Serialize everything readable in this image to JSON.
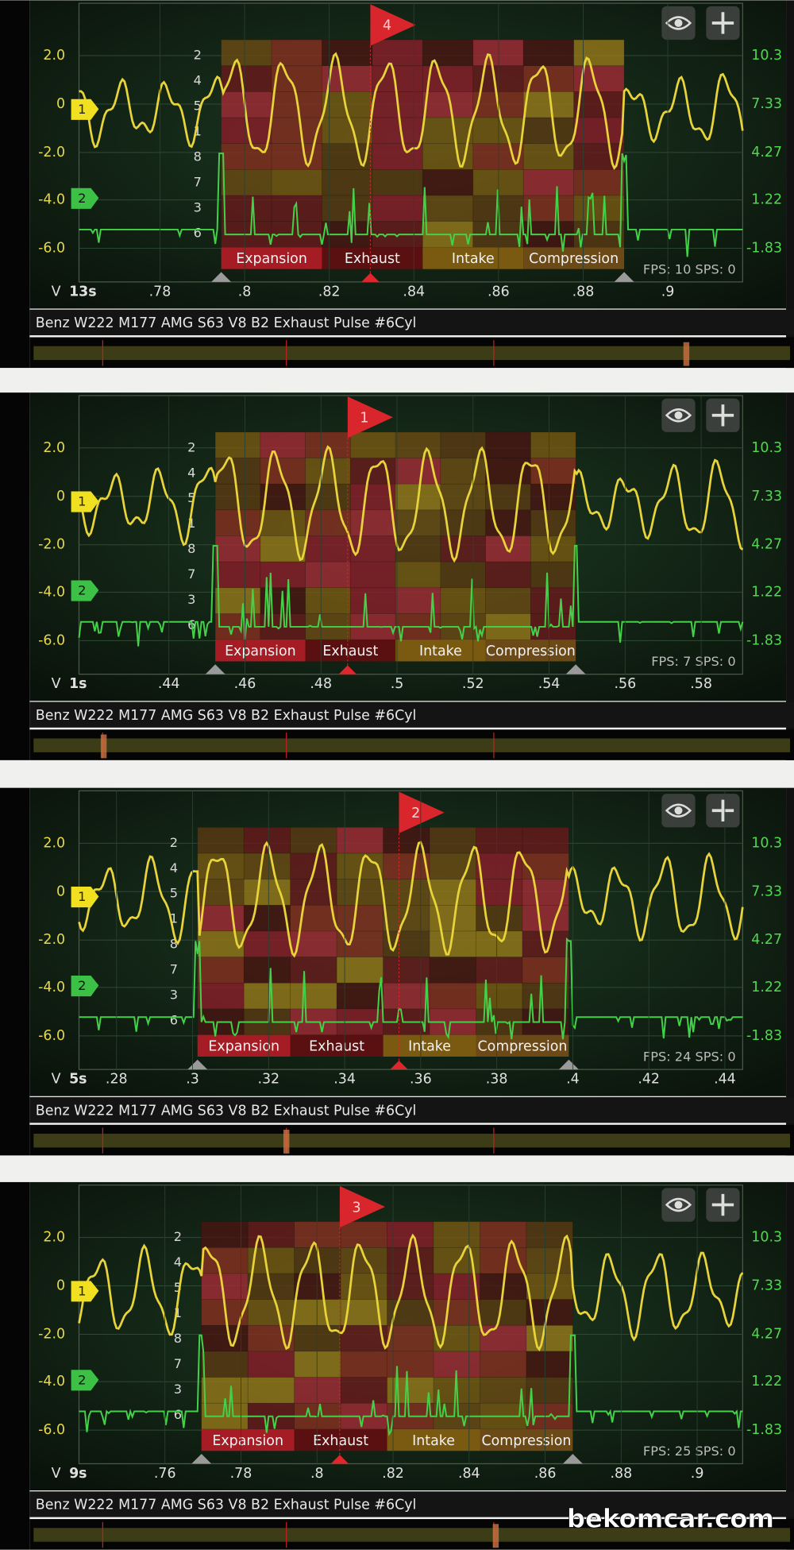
{
  "panels": [
    {
      "marker": "4",
      "time": "13s",
      "xticks": [
        ".78",
        ".8",
        ".82",
        ".84",
        ".86",
        ".88",
        ".9"
      ],
      "fps": "FPS: 10  SPS: 0"
    },
    {
      "marker": "1",
      "time": "1s",
      "xticks": [
        ".44",
        ".46",
        ".48",
        ".5",
        ".52",
        ".54",
        ".56",
        ".58"
      ],
      "fps": "FPS: 7  SPS: 0"
    },
    {
      "marker": "2",
      "time": "5s",
      "xticks": [
        ".28",
        ".3",
        ".32",
        ".34",
        ".36",
        ".38",
        ".4",
        ".42",
        ".44"
      ],
      "fps": "FPS: 24  SPS: 0"
    },
    {
      "marker": "3",
      "time": "9s",
      "xticks": [
        ".76",
        ".78",
        ".8",
        ".82",
        ".84",
        ".86",
        ".88",
        ".9"
      ],
      "fps": "FPS: 25  SPS: 0"
    }
  ],
  "left_axis": [
    "2.0",
    "0",
    "-2.0",
    "-4.0",
    "-6.0"
  ],
  "right_axis": [
    "10.3",
    "7.33",
    "4.27",
    "1.22",
    "-1.83"
  ],
  "channels": [
    "1",
    "2"
  ],
  "cylinder_order": [
    "2",
    "4",
    "5",
    "1",
    "8",
    "7",
    "3",
    "6"
  ],
  "strokes": [
    "Expansion",
    "Exhaust",
    "Intake",
    "Compression"
  ],
  "axis_unit": "V",
  "title": "Benz W222 M177 AMG S63 V8 B2 Exhaust Pulse #6Cyl",
  "watermark": "bekomcar.com"
}
